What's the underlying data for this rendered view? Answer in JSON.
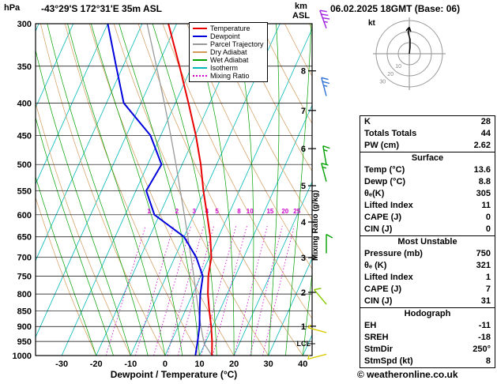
{
  "header": {
    "station_title": "-43°29'S 172°31'E 35m ASL",
    "date_title": "06.02.2025 18GMT (Base: 06)"
  },
  "axes": {
    "pressure_unit": "hPa",
    "altitude_unit": "km",
    "altitude_ref": "ASL",
    "x_label": "Dewpoint / Temperature (°C)",
    "mixing_ratio_label": "Mixing Ratio (g/kg)",
    "lcl_label": "LCL"
  },
  "legend": [
    {
      "label": "Temperature",
      "color": "#e80000",
      "style": "solid"
    },
    {
      "label": "Dewpoint",
      "color": "#0000dd",
      "style": "solid"
    },
    {
      "label": "Parcel Trajectory",
      "color": "#999999",
      "style": "solid"
    },
    {
      "label": "Dry Adiabat",
      "color": "#d29a5a",
      "style": "solid"
    },
    {
      "label": "Wet Adiabat",
      "color": "#00a000",
      "style": "solid"
    },
    {
      "label": "Isotherm",
      "color": "#00b8b8",
      "style": "solid"
    },
    {
      "label": "Mixing Ratio",
      "color": "#cc00cc",
      "style": "dotted"
    }
  ],
  "hodograph": {
    "unit_label": "kt",
    "rings_kt": [
      10,
      20,
      30
    ],
    "ring_labels": [
      "10",
      "20",
      "30"
    ],
    "trace_uv_kt": [
      [
        0,
        0
      ],
      [
        0.7,
        6
      ],
      [
        0.7,
        13
      ],
      [
        -1,
        19
      ],
      [
        0,
        24
      ]
    ]
  },
  "stats": {
    "sections": [
      {
        "header": null,
        "rows": [
          [
            "K",
            "28"
          ],
          [
            "Totals Totals",
            "44"
          ],
          [
            "PW (cm)",
            "2.62"
          ]
        ]
      },
      {
        "header": "Surface",
        "rows": [
          [
            "Temp (°C)",
            "13.6"
          ],
          [
            "Dewp (°C)",
            "8.8"
          ],
          [
            "θₑ(K)",
            "305"
          ],
          [
            "Lifted Index",
            "11"
          ],
          [
            "CAPE (J)",
            "0"
          ],
          [
            "CIN (J)",
            "0"
          ]
        ]
      },
      {
        "header": "Most Unstable",
        "rows": [
          [
            "Pressure (mb)",
            "750"
          ],
          [
            "θₑ (K)",
            "321"
          ],
          [
            "Lifted Index",
            "1"
          ],
          [
            "CAPE (J)",
            "7"
          ],
          [
            "CIN (J)",
            "31"
          ]
        ]
      },
      {
        "header": "Hodograph",
        "rows": [
          [
            "EH",
            "-11"
          ],
          [
            "SREH",
            "-18"
          ],
          [
            "StmDir",
            "250°"
          ],
          [
            "StmSpd (kt)",
            "8"
          ]
        ]
      }
    ]
  },
  "footer": {
    "copyright": "© weatheronline.co.uk"
  },
  "chart_data": {
    "type": "skewt-logp",
    "title": "-43°29'S 172°31'E 35m ASL",
    "pressure_range_hpa": [
      300,
      1000
    ],
    "pressure_ticks": [
      300,
      350,
      400,
      450,
      500,
      550,
      600,
      650,
      700,
      750,
      800,
      850,
      900,
      950,
      1000
    ],
    "temp_ticks_c": [
      -30,
      -20,
      -10,
      0,
      10,
      20,
      30,
      40
    ],
    "km_ticks": [
      {
        "km": 1,
        "p": 899
      },
      {
        "km": 2,
        "p": 795
      },
      {
        "km": 3,
        "p": 701
      },
      {
        "km": 4,
        "p": 616
      },
      {
        "km": 5,
        "p": 540
      },
      {
        "km": 6,
        "p": 472
      },
      {
        "km": 7,
        "p": 411
      },
      {
        "km": 8,
        "p": 356
      }
    ],
    "lcl": {
      "label": "LCL",
      "p": 958
    },
    "mixing_ratio_lines_gkg": [
      1,
      2,
      3,
      4,
      5,
      8,
      10,
      15,
      20,
      25
    ],
    "background": {
      "isotherm_step_c": 10,
      "dry_adiabat_step_c": 10,
      "wet_adiabat_step_c": 5
    },
    "sounding": {
      "temperature": [
        [
          1000,
          13.6
        ],
        [
          950,
          11.8
        ],
        [
          900,
          9.6
        ],
        [
          850,
          7.0
        ],
        [
          800,
          4.4
        ],
        [
          750,
          2.2
        ],
        [
          700,
          0.6
        ],
        [
          650,
          -2.4
        ],
        [
          600,
          -6.2
        ],
        [
          550,
          -10.4
        ],
        [
          500,
          -14.6
        ],
        [
          450,
          -19.8
        ],
        [
          400,
          -26.2
        ],
        [
          350,
          -33.6
        ],
        [
          300,
          -42.4
        ]
      ],
      "dewpoint": [
        [
          1000,
          8.8
        ],
        [
          950,
          7.6
        ],
        [
          900,
          6.2
        ],
        [
          850,
          4.2
        ],
        [
          800,
          2.2
        ],
        [
          750,
          0.6
        ],
        [
          700,
          -3.8
        ],
        [
          650,
          -10.0
        ],
        [
          600,
          -21.5
        ],
        [
          550,
          -27.0
        ],
        [
          500,
          -26.0
        ],
        [
          450,
          -33.0
        ],
        [
          400,
          -45.0
        ],
        [
          350,
          -52.0
        ],
        [
          300,
          -60.0
        ]
      ],
      "parcel": [
        [
          1000,
          13.6
        ],
        [
          958,
          9.8
        ],
        [
          900,
          6.6
        ],
        [
          850,
          3.9
        ],
        [
          800,
          1.0
        ],
        [
          750,
          -2.0
        ],
        [
          700,
          -5.3
        ],
        [
          650,
          -8.9
        ],
        [
          600,
          -12.8
        ],
        [
          550,
          -17.1
        ],
        [
          500,
          -21.8
        ],
        [
          450,
          -27.1
        ],
        [
          400,
          -33.2
        ],
        [
          350,
          -40.3
        ],
        [
          300,
          -48.6
        ]
      ]
    },
    "wind_barbs": [
      {
        "p": 305,
        "dir_deg": 340,
        "speed_kt": 35,
        "color": "#a020e0"
      },
      {
        "p": 390,
        "dir_deg": 345,
        "speed_kt": 25,
        "color": "#2b6fd4"
      },
      {
        "p": 500,
        "dir_deg": 350,
        "speed_kt": 15,
        "color": "#00a000"
      },
      {
        "p": 532,
        "dir_deg": 345,
        "speed_kt": 15,
        "color": "#00a000"
      },
      {
        "p": 690,
        "dir_deg": 0,
        "speed_kt": 10,
        "color": "#00a000"
      },
      {
        "p": 830,
        "dir_deg": 320,
        "speed_kt": 10,
        "color": "#86c800"
      },
      {
        "p": 920,
        "dir_deg": 285,
        "speed_kt": 5,
        "color": "#d8cc00"
      },
      {
        "p": 995,
        "dir_deg": 255,
        "speed_kt": 5,
        "color": "#d8cc00"
      }
    ],
    "colors": {
      "temperature": "#e80000",
      "dewpoint": "#0000dd",
      "parcel": "#999999",
      "dry_adiabat": "#d29a5a",
      "wet_adiabat": "#00a000",
      "isotherm": "#00b8b8",
      "mixing_ratio": "#cc00cc",
      "isobar": "#000000"
    }
  }
}
